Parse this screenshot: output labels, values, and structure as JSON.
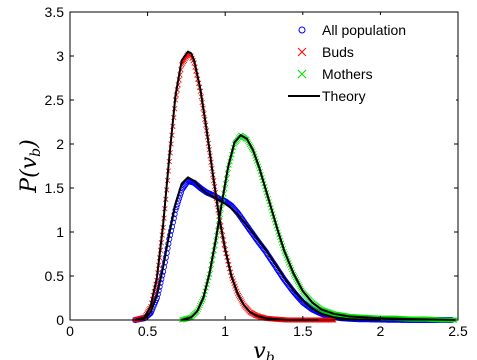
{
  "chart_data": {
    "type": "line",
    "xlabel": "v_b",
    "ylabel": "P(v_b)",
    "xlim": [
      0,
      2.5
    ],
    "ylim": [
      0,
      3.5
    ],
    "xticks": [
      "0",
      "0.5",
      "1",
      "1.5",
      "2",
      "2.5"
    ],
    "yticks": [
      "0",
      "0.5",
      "1",
      "1.5",
      "2",
      "2.5",
      "3",
      "3.5"
    ],
    "grid": false,
    "legend_position": "top-right",
    "series": [
      {
        "name": "All population",
        "marker": "circle",
        "color": "#0000ff",
        "x": [
          0.42,
          0.48,
          0.52,
          0.56,
          0.6,
          0.64,
          0.68,
          0.72,
          0.76,
          0.8,
          0.84,
          0.88,
          0.92,
          0.96,
          1.0,
          1.04,
          1.08,
          1.12,
          1.16,
          1.2,
          1.26,
          1.32,
          1.38,
          1.44,
          1.5,
          1.56,
          1.62,
          1.68,
          1.75,
          1.85,
          2.0,
          2.2,
          2.46
        ],
        "y": [
          0.0,
          0.02,
          0.08,
          0.25,
          0.55,
          0.92,
          1.25,
          1.48,
          1.58,
          1.56,
          1.5,
          1.45,
          1.42,
          1.38,
          1.35,
          1.3,
          1.22,
          1.12,
          1.02,
          0.92,
          0.78,
          0.62,
          0.46,
          0.32,
          0.2,
          0.12,
          0.07,
          0.04,
          0.02,
          0.01,
          0.005,
          0.0,
          0.0
        ]
      },
      {
        "name": "Buds",
        "marker": "x",
        "color": "#ff0000",
        "x": [
          0.42,
          0.48,
          0.52,
          0.56,
          0.6,
          0.64,
          0.68,
          0.72,
          0.76,
          0.78,
          0.8,
          0.84,
          0.88,
          0.92,
          0.96,
          1.0,
          1.04,
          1.08,
          1.12,
          1.16,
          1.2,
          1.26,
          1.32,
          1.4,
          1.5,
          1.6,
          1.7
        ],
        "y": [
          0.0,
          0.03,
          0.15,
          0.45,
          1.05,
          1.8,
          2.5,
          2.9,
          3.02,
          3.0,
          2.92,
          2.6,
          2.15,
          1.65,
          1.18,
          0.8,
          0.5,
          0.3,
          0.17,
          0.09,
          0.05,
          0.02,
          0.01,
          0.0,
          0.0,
          0.0,
          0.0
        ]
      },
      {
        "name": "Mothers",
        "marker": "x",
        "color": "#00dd00",
        "x": [
          0.72,
          0.78,
          0.82,
          0.86,
          0.9,
          0.94,
          0.98,
          1.02,
          1.06,
          1.1,
          1.14,
          1.18,
          1.22,
          1.26,
          1.3,
          1.34,
          1.38,
          1.44,
          1.5,
          1.56,
          1.62,
          1.7,
          1.8,
          1.9,
          2.0,
          2.1,
          2.2,
          2.3,
          2.4,
          2.48
        ],
        "y": [
          0.0,
          0.03,
          0.1,
          0.25,
          0.52,
          0.9,
          1.32,
          1.72,
          2.0,
          2.1,
          2.05,
          1.92,
          1.72,
          1.48,
          1.24,
          1.0,
          0.78,
          0.52,
          0.32,
          0.2,
          0.12,
          0.07,
          0.04,
          0.03,
          0.02,
          0.02,
          0.01,
          0.01,
          0.0,
          0.0
        ]
      }
    ],
    "theory": {
      "name": "Theory",
      "color": "#000000",
      "curves": [
        {
          "x": [
            0.42,
            0.48,
            0.52,
            0.56,
            0.6,
            0.64,
            0.68,
            0.72,
            0.76,
            0.8,
            0.84,
            0.88,
            0.92,
            0.96,
            1.0,
            1.04,
            1.08,
            1.12,
            1.16,
            1.2,
            1.26,
            1.32,
            1.38,
            1.44,
            1.5,
            1.56,
            1.62,
            1.7,
            1.8,
            2.0
          ],
          "y": [
            0.0,
            0.02,
            0.09,
            0.28,
            0.6,
            0.98,
            1.32,
            1.55,
            1.62,
            1.58,
            1.5,
            1.44,
            1.4,
            1.36,
            1.32,
            1.27,
            1.2,
            1.12,
            1.03,
            0.94,
            0.8,
            0.64,
            0.48,
            0.34,
            0.22,
            0.13,
            0.07,
            0.03,
            0.01,
            0.0
          ]
        },
        {
          "x": [
            0.42,
            0.48,
            0.52,
            0.56,
            0.6,
            0.64,
            0.68,
            0.72,
            0.76,
            0.78,
            0.8,
            0.84,
            0.88,
            0.92,
            0.96,
            1.0,
            1.04,
            1.08,
            1.12,
            1.16,
            1.2,
            1.26,
            1.32,
            1.4,
            1.6
          ],
          "y": [
            0.0,
            0.03,
            0.16,
            0.48,
            1.08,
            1.85,
            2.55,
            2.95,
            3.05,
            3.03,
            2.95,
            2.62,
            2.16,
            1.66,
            1.18,
            0.8,
            0.5,
            0.3,
            0.17,
            0.09,
            0.05,
            0.02,
            0.01,
            0.0,
            0.0
          ]
        },
        {
          "x": [
            0.72,
            0.78,
            0.82,
            0.86,
            0.9,
            0.94,
            0.98,
            1.02,
            1.06,
            1.1,
            1.14,
            1.18,
            1.22,
            1.26,
            1.3,
            1.34,
            1.38,
            1.44,
            1.5,
            1.56,
            1.62,
            1.7,
            1.8,
            1.9,
            2.0,
            2.2,
            2.48
          ],
          "y": [
            0.0,
            0.03,
            0.1,
            0.26,
            0.54,
            0.92,
            1.35,
            1.75,
            2.02,
            2.1,
            2.06,
            1.93,
            1.73,
            1.49,
            1.25,
            1.01,
            0.79,
            0.53,
            0.33,
            0.2,
            0.12,
            0.07,
            0.04,
            0.03,
            0.02,
            0.01,
            0.0
          ]
        }
      ]
    }
  }
}
